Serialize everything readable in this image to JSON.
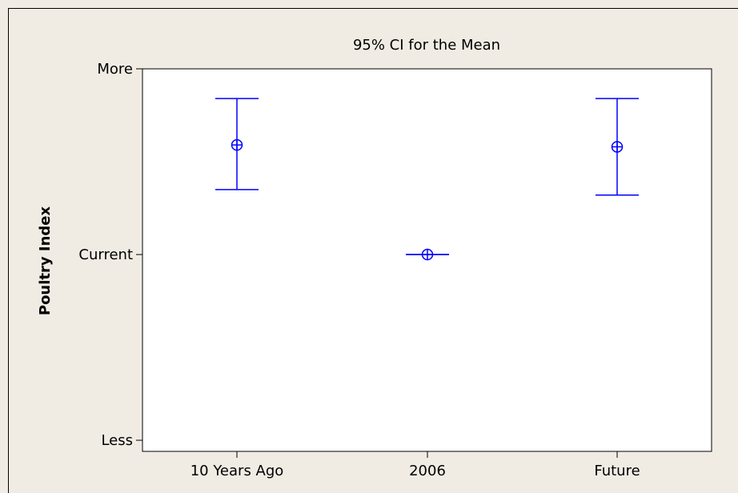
{
  "chart_data": {
    "type": "interval",
    "title": "95% CI for the Mean",
    "ylabel": "Poultry Index",
    "xlabel": "",
    "categories": [
      "10 Years Ago",
      "2006",
      "Future"
    ],
    "y_tick_labels": [
      "Less",
      "Current",
      "More"
    ],
    "y_tick_values": [
      -1,
      0,
      1
    ],
    "ylim": [
      -1.06,
      1.0
    ],
    "series": [
      {
        "mean": [
          0.59,
          0.0,
          0.58
        ],
        "lower": [
          0.35,
          0.0,
          0.32
        ],
        "upper": [
          0.84,
          0.0,
          0.84
        ]
      }
    ],
    "grid": false,
    "color": "#0000ff"
  }
}
